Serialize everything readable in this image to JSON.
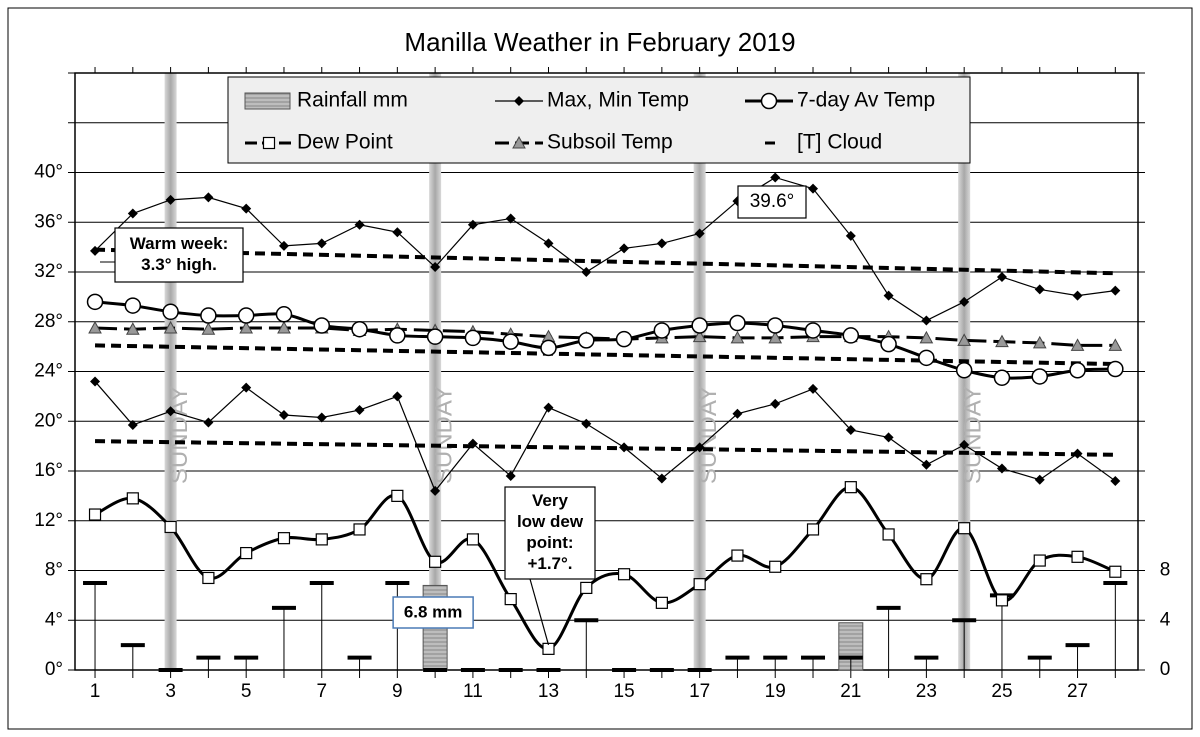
{
  "chart_data": {
    "type": "weather",
    "title": "Manilla Weather in February 2019",
    "xlim": [
      0.47,
      28.6
    ],
    "xticks": [
      1,
      {
        "value": 2,
        "label": null
      },
      3,
      {
        "value": 4,
        "label": null
      },
      5,
      {
        "value": 6,
        "label": null
      },
      7,
      {
        "value": 8,
        "label": null
      },
      9,
      {
        "value": 10,
        "label": null
      },
      11,
      {
        "value": 12,
        "label": null
      },
      13,
      {
        "value": 14,
        "label": null
      },
      15,
      {
        "value": 16,
        "label": null
      },
      17,
      {
        "value": 18,
        "label": null
      },
      19,
      {
        "value": 20,
        "label": null
      },
      21,
      {
        "value": 22,
        "label": null
      },
      23,
      {
        "value": 24,
        "label": null
      },
      25,
      {
        "value": 26,
        "label": null
      },
      27,
      {
        "value": 28,
        "label": null
      }
    ],
    "ylim": [
      0,
      48
    ],
    "yticks": [
      {
        "value": 0,
        "label": "0°"
      },
      {
        "value": 4,
        "label": "4°"
      },
      {
        "value": 8,
        "label": "8°"
      },
      {
        "value": 12,
        "label": "12°"
      },
      {
        "value": 16,
        "label": "16°"
      },
      {
        "value": 20,
        "label": "20°"
      },
      {
        "value": 24,
        "label": "24°"
      },
      {
        "value": 28,
        "label": "28°"
      },
      {
        "value": 32,
        "label": "32°"
      },
      {
        "value": 36,
        "label": "36°"
      },
      {
        "value": 40,
        "label": "40°"
      },
      {
        "value": 44,
        "label": null
      },
      {
        "value": 48,
        "label": null
      }
    ],
    "y2lim": [
      0,
      48
    ],
    "y2ticks": [
      0,
      4,
      8
    ],
    "grid": true,
    "x": [
      1,
      2,
      3,
      4,
      5,
      6,
      7,
      8,
      9,
      10,
      11,
      12,
      13,
      14,
      15,
      16,
      17,
      18,
      19,
      20,
      21,
      22,
      23,
      24,
      25,
      26,
      27,
      28
    ],
    "series": [
      {
        "name": "Rainfall mm",
        "kind": "bar",
        "axis": "y2",
        "color": "#b4b4b4",
        "values": [
          0,
          0,
          0,
          0,
          0,
          0,
          0,
          0,
          0,
          6.8,
          0,
          0,
          0,
          0,
          0,
          0,
          0,
          0,
          0,
          0,
          3.8,
          0,
          0,
          0,
          0,
          0,
          0,
          0
        ],
        "value_labels": [
          null,
          null,
          null,
          null,
          null,
          null,
          null,
          null,
          null,
          "6.8 mm",
          null,
          null,
          null,
          null,
          null,
          null,
          null,
          null,
          null,
          null,
          null,
          null,
          null,
          null,
          null,
          null,
          null,
          null
        ]
      },
      {
        "name": "Max, Min Temp",
        "kind": "maxmin",
        "color": "#000000",
        "max": [
          33.7,
          36.7,
          37.8,
          38.0,
          37.1,
          34.1,
          34.3,
          35.8,
          35.2,
          32.4,
          35.8,
          36.3,
          34.3,
          32.0,
          33.9,
          34.3,
          35.1,
          37.7,
          39.6,
          38.7,
          34.9,
          30.1,
          28.1,
          29.6,
          31.6,
          30.6,
          30.1,
          30.5
        ],
        "min": [
          23.2,
          19.7,
          20.8,
          19.9,
          22.7,
          20.5,
          20.3,
          20.9,
          22.0,
          14.4,
          18.2,
          15.6,
          21.1,
          19.8,
          17.9,
          15.4,
          17.9,
          20.6,
          21.4,
          22.6,
          19.3,
          18.7,
          16.5,
          18.1,
          16.2,
          15.3,
          17.4,
          15.2
        ]
      },
      {
        "name": "7-day Av Temp",
        "kind": "avg",
        "color": "#000000",
        "values": [
          29.6,
          29.3,
          28.8,
          28.5,
          28.5,
          28.6,
          27.7,
          27.4,
          26.9,
          26.8,
          26.7,
          26.4,
          25.9,
          26.5,
          26.6,
          27.3,
          27.7,
          27.9,
          27.7,
          27.3,
          26.9,
          26.2,
          25.1,
          24.1,
          23.5,
          23.6,
          24.1,
          24.2
        ]
      },
      {
        "name": "Dew Point",
        "kind": "dew",
        "color": "#000000",
        "values": [
          12.5,
          13.8,
          11.5,
          7.4,
          9.4,
          10.6,
          10.5,
          11.3,
          14.0,
          8.7,
          10.5,
          5.7,
          1.7,
          6.6,
          7.7,
          5.4,
          6.9,
          9.2,
          8.3,
          11.3,
          14.7,
          10.9,
          7.3,
          11.4,
          5.6,
          8.8,
          9.1,
          7.9
        ]
      },
      {
        "name": "Subsoil Temp",
        "kind": "subsoil",
        "color": "#000000",
        "values": [
          27.5,
          27.4,
          27.5,
          27.4,
          27.5,
          27.5,
          27.5,
          27.3,
          27.4,
          27.3,
          27.2,
          27.0,
          26.8,
          26.7,
          26.6,
          26.7,
          26.8,
          26.7,
          26.7,
          26.8,
          26.8,
          26.8,
          26.7,
          26.5,
          26.4,
          26.3,
          26.1,
          26.1
        ]
      },
      {
        "name": "[T] Cloud",
        "kind": "cloud",
        "axis": "y2",
        "color": "#000000",
        "values": [
          7,
          2,
          0,
          1,
          1,
          5,
          7,
          1,
          7,
          0,
          0,
          0,
          0,
          4,
          0,
          0,
          0,
          1,
          1,
          1,
          1,
          5,
          1,
          4,
          6,
          1,
          2,
          7
        ]
      }
    ],
    "normals": {
      "x": [
        1,
        28
      ],
      "lines": [
        [
          33.8,
          31.9
        ],
        [
          26.1,
          24.6
        ],
        [
          18.4,
          17.3
        ]
      ]
    },
    "sundays": [
      3,
      10,
      17,
      24
    ],
    "sunday_label": "SUNDAY",
    "annotations": [
      {
        "lines": [
          "Warm week:",
          "3.3° high."
        ]
      },
      {
        "lines": [
          "39.6°"
        ]
      },
      {
        "lines": [
          "Very",
          "low dew",
          "point:",
          "+1.7°."
        ]
      }
    ]
  }
}
